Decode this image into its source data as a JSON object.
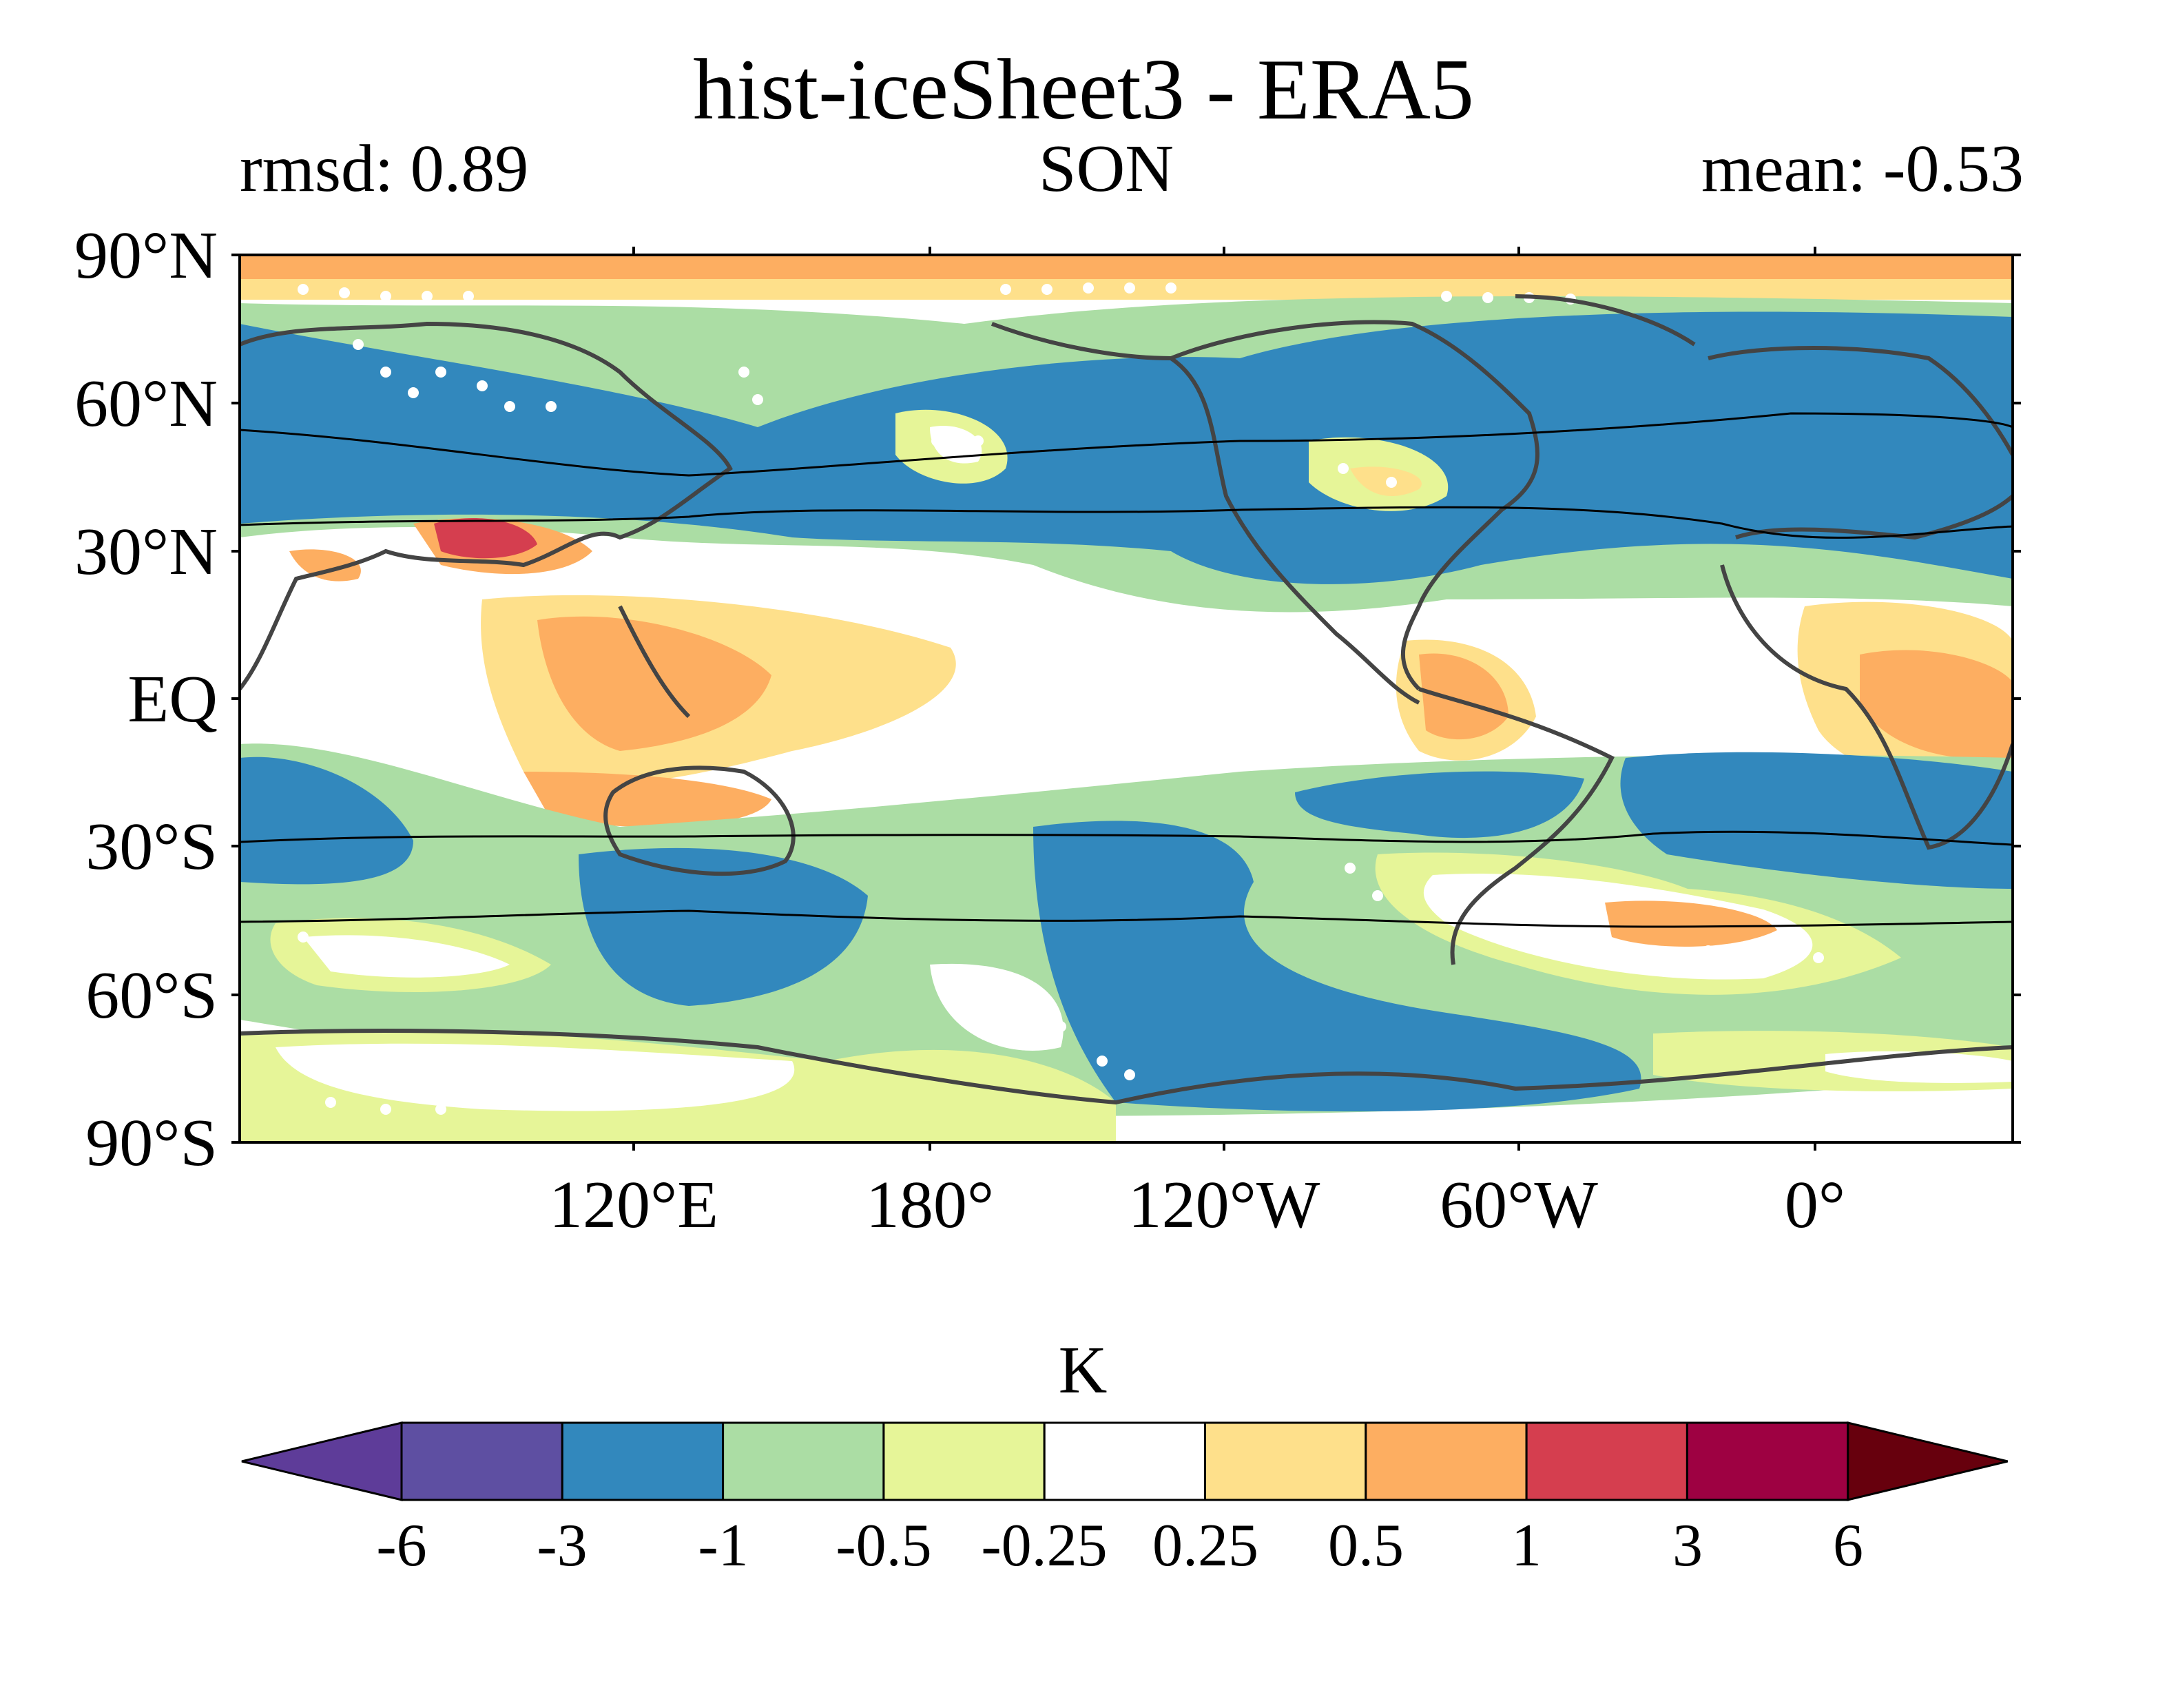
{
  "header": {
    "title": "hist-iceSheet3 - ERA5",
    "rmsd": "rmsd: 0.89",
    "season": "SON",
    "mean": "mean: -0.53"
  },
  "axes": {
    "lat_labels": [
      "90°N",
      "60°N",
      "30°N",
      "EQ",
      "30°S",
      "60°S",
      "90°S"
    ],
    "lon_labels": [
      "120°E",
      "180°",
      "120°W",
      "60°W",
      "0°"
    ]
  },
  "colorbar": {
    "units": "K",
    "levels": [
      "-6",
      "-3",
      "-1",
      "-0.5",
      "-0.25",
      "0.25",
      "0.5",
      "1",
      "3",
      "6"
    ],
    "colors": [
      "#5e3c99",
      "#5e4fa2",
      "#3288bd",
      "#abdda4",
      "#e6f598",
      "#ffffff",
      "#fee08b",
      "#fdae61",
      "#d53e4f",
      "#9e0142",
      "#67000d"
    ]
  },
  "legend_colors": {
    "land_outline": "#444444",
    "jet_lines": "#000000",
    "stipple": "#ffffff"
  }
}
